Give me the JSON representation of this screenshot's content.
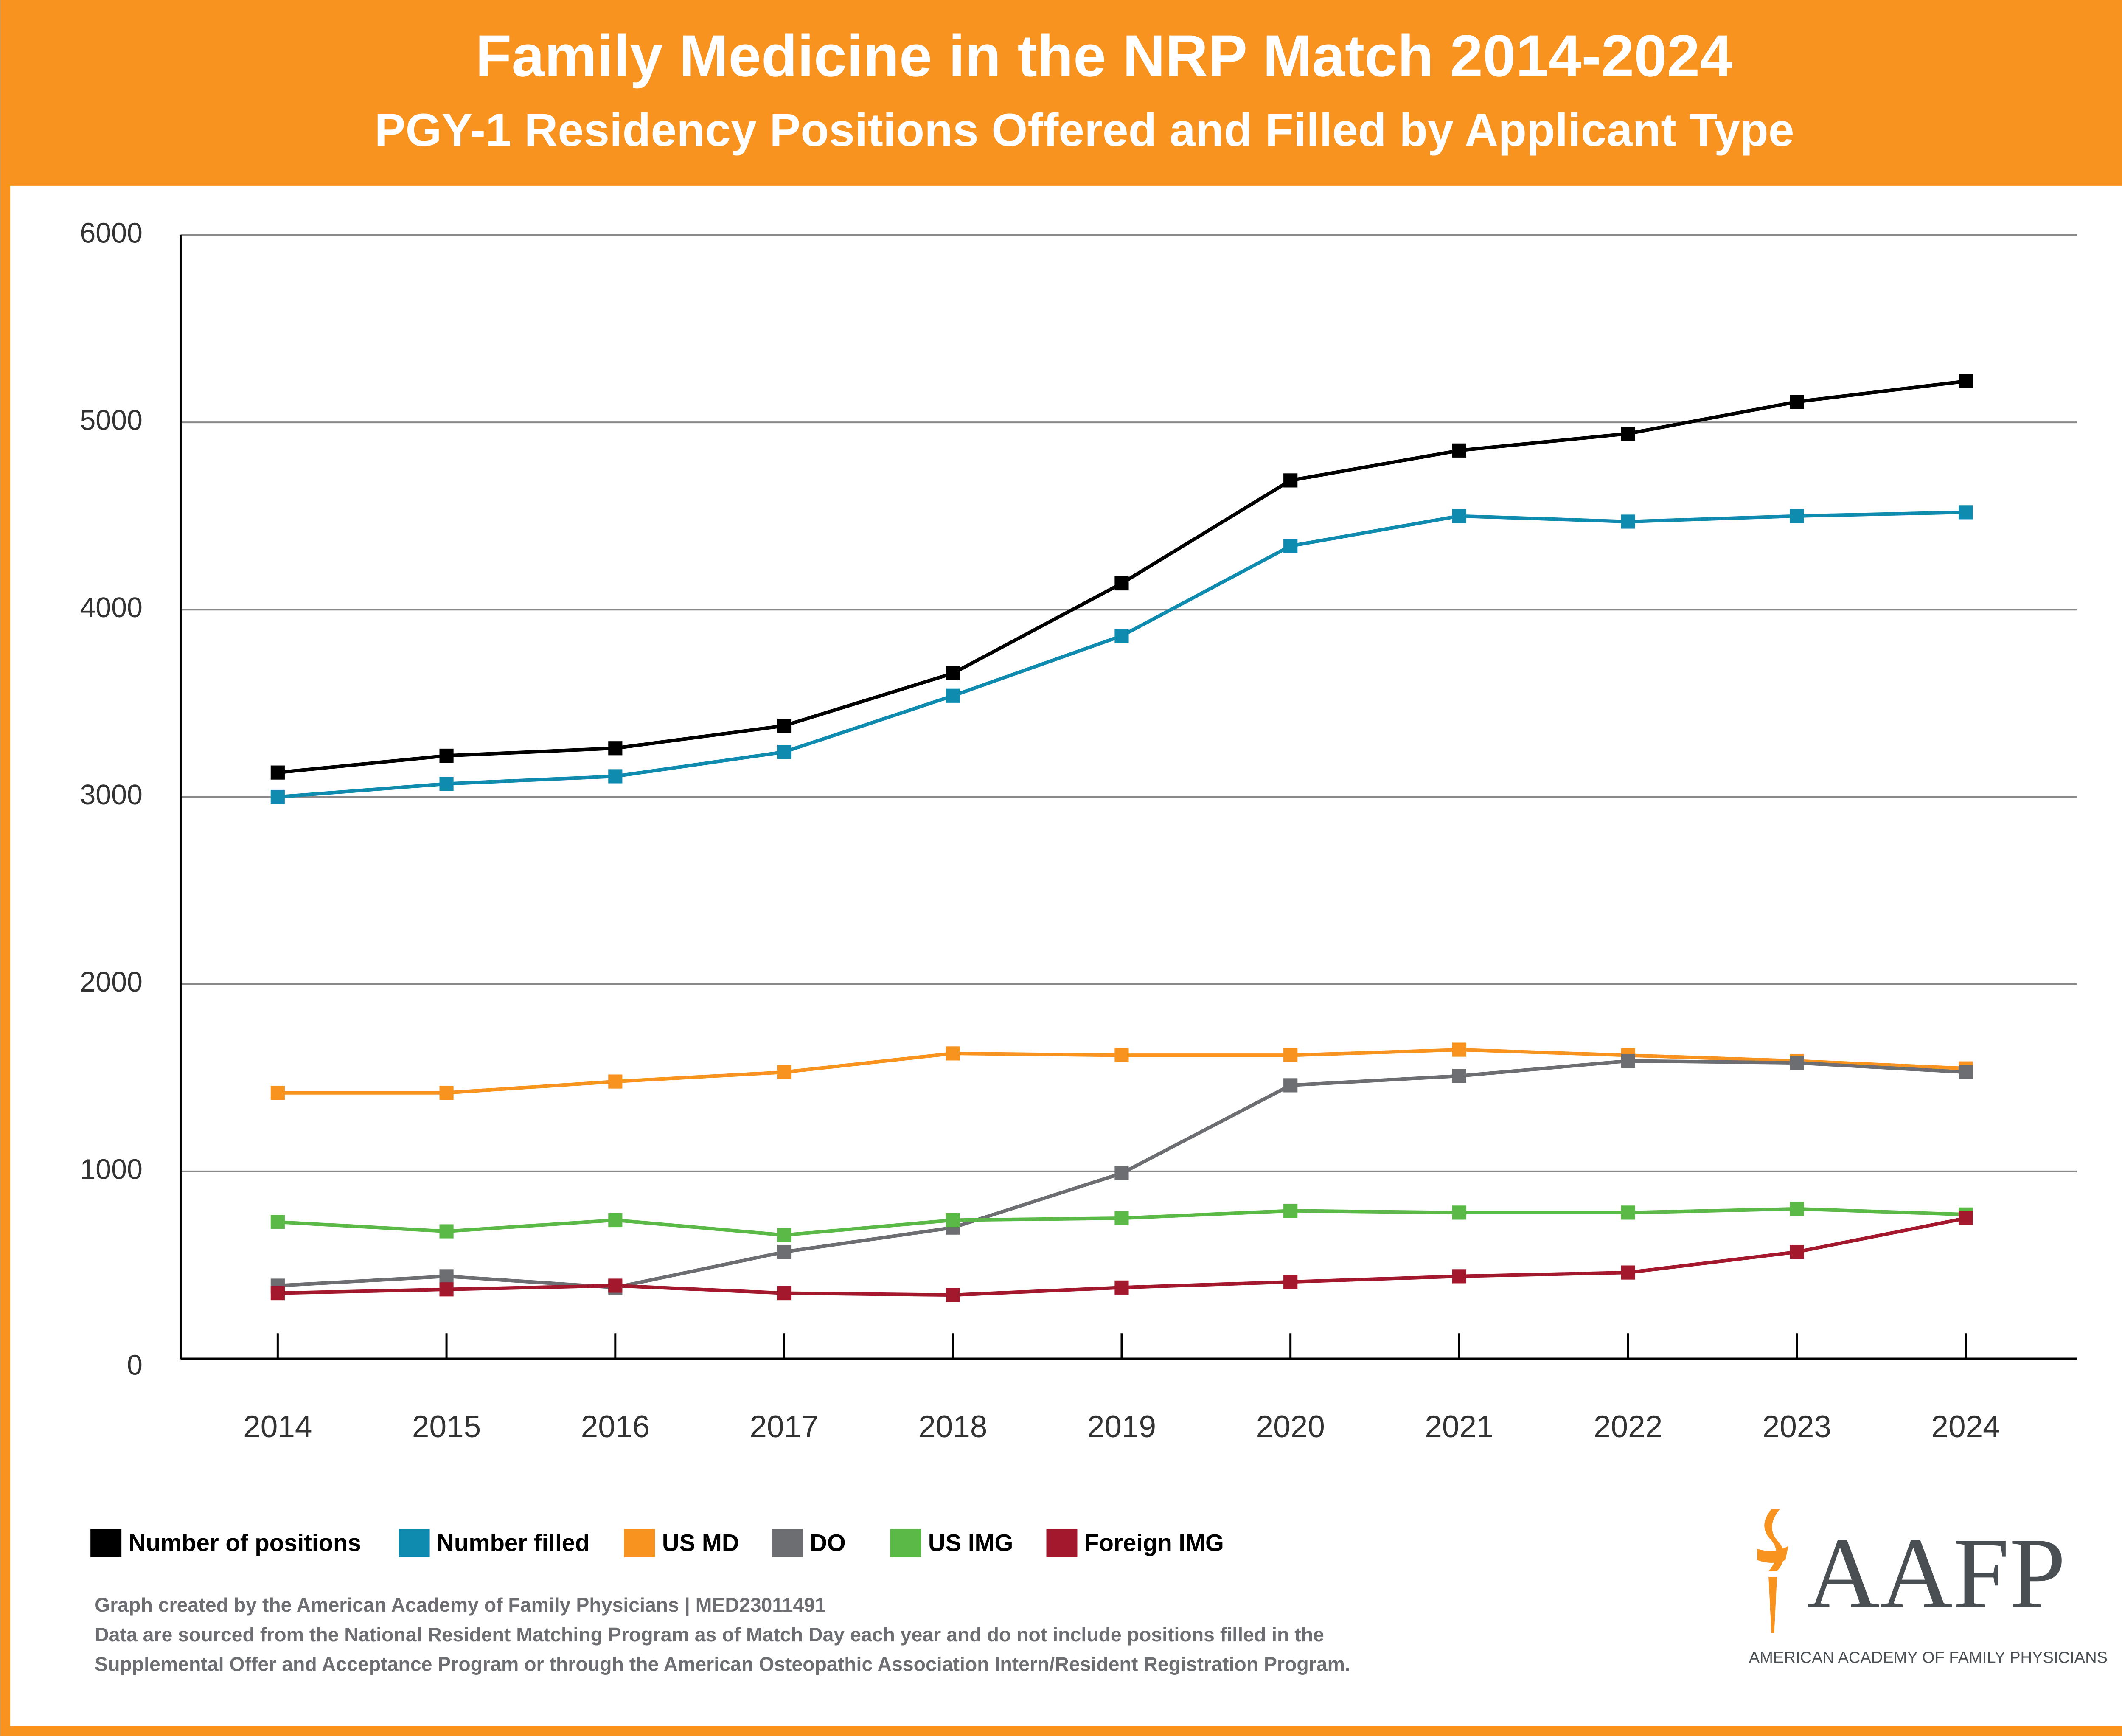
{
  "chart_data": {
    "type": "line",
    "title": "Family Medicine in the NRP Match 2014-2024",
    "subtitle": "PGY-1 Residency Positions Offered and Filled by Applicant Type",
    "categories": [
      "2014",
      "2015",
      "2016",
      "2017",
      "2018",
      "2019",
      "2020",
      "2021",
      "2022",
      "2023",
      "2024"
    ],
    "ylim": [
      0,
      6000
    ],
    "yticks": [
      0,
      1000,
      2000,
      3000,
      4000,
      5000,
      6000
    ],
    "grid": true,
    "legend": "bottom",
    "series": [
      {
        "name": "Number of positions",
        "color": "#000000",
        "values": [
          3130,
          3220,
          3260,
          3380,
          3660,
          4140,
          4690,
          4850,
          4940,
          5110,
          5220
        ]
      },
      {
        "name": "Number filled",
        "color": "#0f8bb0",
        "values": [
          3000,
          3070,
          3110,
          3240,
          3540,
          3860,
          4340,
          4500,
          4470,
          4500,
          4520
        ]
      },
      {
        "name": "US MD",
        "color": "#f7931e",
        "values": [
          1420,
          1420,
          1480,
          1530,
          1630,
          1620,
          1620,
          1650,
          1620,
          1590,
          1550
        ]
      },
      {
        "name": "DO",
        "color": "#6d6e71",
        "values": [
          390,
          440,
          380,
          570,
          700,
          990,
          1460,
          1510,
          1590,
          1580,
          1530
        ]
      },
      {
        "name": "US IMG",
        "color": "#5bb947",
        "values": [
          730,
          680,
          740,
          660,
          740,
          750,
          790,
          780,
          780,
          800,
          770
        ]
      },
      {
        "name": "Foreign IMG",
        "color": "#a3182d",
        "values": [
          350,
          370,
          390,
          350,
          340,
          380,
          410,
          440,
          460,
          570,
          750
        ]
      }
    ],
    "notes": [
      "Graph created by the American Academy of Family Physicians | MED23011491",
      "Data are sourced from the National Resident Matching Program as of Match Day each year and do not include positions filled in the",
      "Supplemental Offer and Acceptance Program or through the American Osteopathic Association Intern/Resident Registration Program."
    ],
    "logo": {
      "text": "AAFP",
      "caption": "AMERICAN ACADEMY OF FAMILY PHYSICIANS"
    }
  }
}
